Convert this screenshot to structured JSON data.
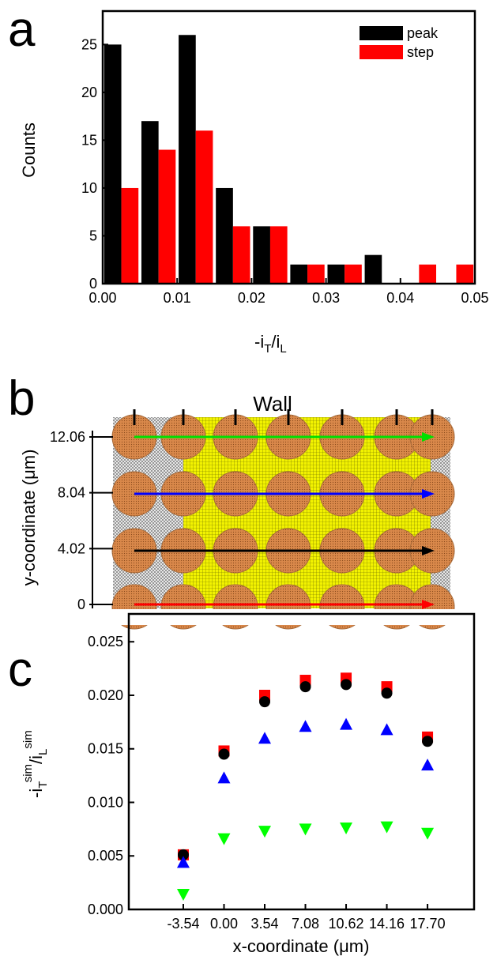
{
  "chart_data": [
    {
      "type": "histogram",
      "panel": "a",
      "bins": [
        0,
        0.005,
        0.01,
        0.015,
        0.02,
        0.025,
        0.03,
        0.035,
        0.04,
        0.045,
        0.05
      ],
      "series": [
        {
          "name": "peak",
          "color": "#000000",
          "values": [
            25,
            17,
            26,
            10,
            6,
            2,
            2,
            3,
            0,
            0
          ]
        },
        {
          "name": "step",
          "color": "#ff0000",
          "values": [
            10,
            14,
            16,
            6,
            6,
            2,
            2,
            0,
            2,
            2
          ]
        }
      ],
      "xlabel": [
        "-i",
        "T",
        "/i",
        "L"
      ],
      "ylabel": "Counts",
      "xlim": [
        0,
        0.05
      ],
      "ylim": [
        0,
        28.5
      ],
      "xticks": [
        {
          "value": 0,
          "label": "0.00"
        },
        0.01,
        0.02,
        0.03,
        0.04,
        0.05
      ],
      "yticks": [
        0,
        5,
        10,
        15,
        20,
        25
      ],
      "legend": "top-right"
    },
    {
      "type": "image",
      "panel": "b",
      "title": "Wall",
      "ylabel": "y-coordinate (μm)",
      "ylim": [
        0,
        12.06
      ],
      "yticks": [
        12.06,
        8.04,
        4.02,
        0
      ]
    },
    {
      "type": "scatter",
      "panel": "c",
      "x": [
        -3.54,
        0,
        3.54,
        7.08,
        10.62,
        14.16,
        17.7
      ],
      "series": [
        {
          "color": "#ff0000",
          "marker": "square",
          "values": [
            0.0051,
            0.0148,
            0.02,
            0.0214,
            0.0216,
            0.0208,
            0.0161
          ]
        },
        {
          "color": "#000000",
          "marker": "circle",
          "values": [
            0.0051,
            0.0145,
            0.0194,
            0.0208,
            0.021,
            0.0202,
            0.0157
          ]
        },
        {
          "color": "#0000ff",
          "marker": "triangle-up",
          "values": [
            0.0044,
            0.0123,
            0.016,
            0.0171,
            0.0173,
            0.0168,
            0.0135
          ]
        },
        {
          "color": "#00ff00",
          "marker": "triangle-down",
          "values": [
            0.0014,
            0.0066,
            0.0073,
            0.0075,
            0.0076,
            0.0077,
            0.0071
          ]
        }
      ],
      "xlabel": "x-coordinate (μm)",
      "ylabel": [
        "-i",
        "T",
        "sim",
        "/i",
        "L",
        "sim"
      ],
      "xlim": [
        -8.28,
        21.75
      ],
      "ylim": [
        0,
        0.0276
      ],
      "xticks": [
        -3.54,
        {
          "value": 0,
          "label": "0.00"
        },
        3.54,
        7.08,
        10.62,
        14.16,
        {
          "value": 17.7,
          "label": "17.70"
        }
      ],
      "yticks": [
        {
          "value": 0,
          "label": "0.000"
        },
        0.005,
        {
          "value": 0.01,
          "label": "0.010"
        },
        0.015,
        {
          "value": 0.02,
          "label": "0.020"
        },
        0.025
      ]
    }
  ]
}
